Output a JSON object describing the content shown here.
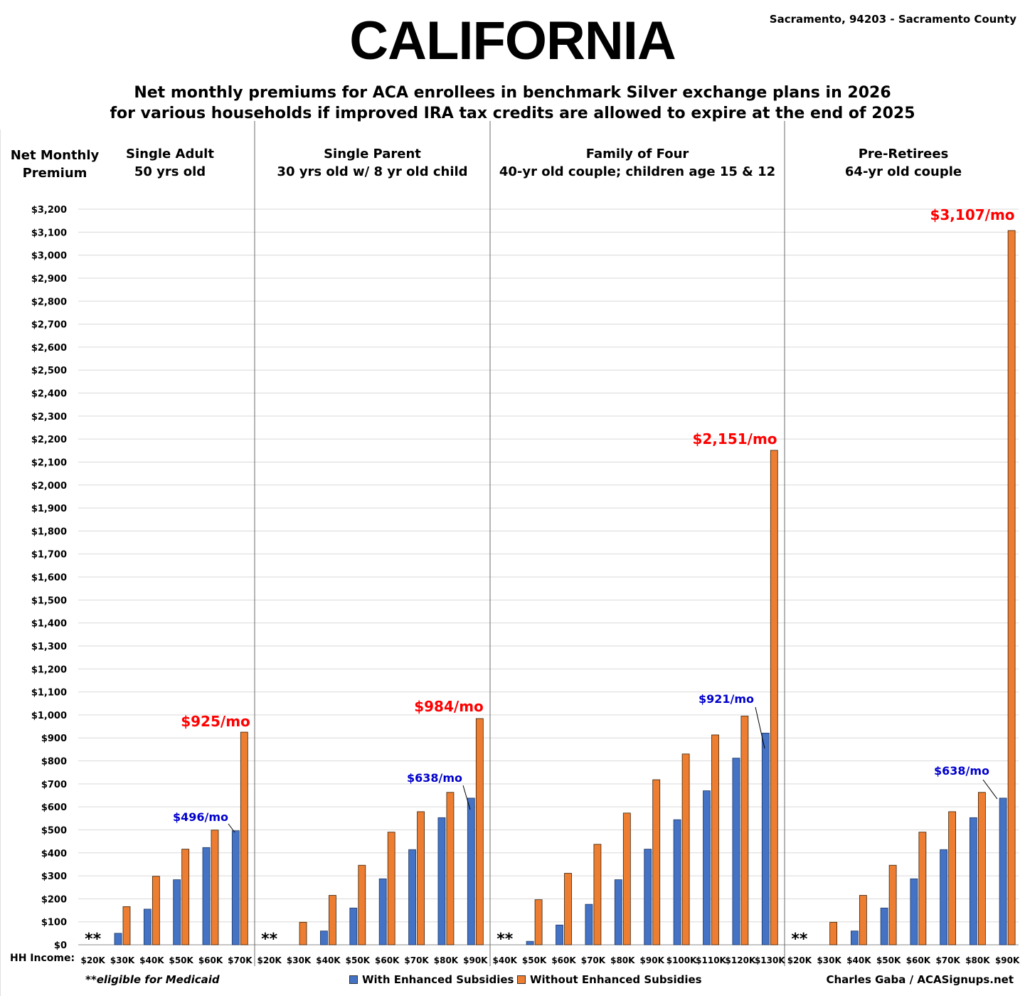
{
  "header": {
    "title": "CALIFORNIA",
    "location": "Sacramento, 94203 - Sacramento County",
    "subtitle_line1": "Net monthly premiums for ACA enrollees in benchmark Silver exchange plans in 2026",
    "subtitle_line2": "for various households if improved IRA tax credits are allowed to expire at the end of 2025"
  },
  "colors": {
    "with": "#4472C4",
    "without": "#ED7D31",
    "callout_red": "#FF0000",
    "callout_blue": "#0000CC",
    "grid": "#D9D9D9"
  },
  "footer": {
    "hh_income_label": "HH Income:",
    "footnote": "**eligible for Medicaid",
    "credit": "Charles Gaba / ACASignups.net",
    "legend_with": "With Enhanced Subsidies",
    "legend_without": "Without Enhanced Subsidies"
  },
  "chart_data": {
    "type": "bar",
    "ylabel_line1": "Net Monthly",
    "ylabel_line2": "Premium",
    "ylim": [
      0,
      3200
    ],
    "ytick_step": 100,
    "ytick_format": "$#,###",
    "grid": true,
    "legend_position": "bottom",
    "series_names": [
      "With Enhanced Subsidies",
      "Without Enhanced Subsidies"
    ],
    "panels": [
      {
        "title_line1": "Single Adult",
        "title_line2": "50 yrs old",
        "categories": [
          "$20K",
          "$30K",
          "$40K",
          "$50K",
          "$60K",
          "$70K"
        ],
        "with": [
          null,
          50,
          155,
          283,
          423,
          496
        ],
        "without": [
          null,
          166,
          298,
          416,
          499,
          925
        ],
        "medicaid_marker": "**",
        "callout_without": "$925/mo",
        "callout_with": "$496/mo"
      },
      {
        "title_line1": "Single Parent",
        "title_line2": "30 yrs old w/ 8 yr old child",
        "categories": [
          "$20K",
          "$30K",
          "$40K",
          "$50K",
          "$60K",
          "$70K",
          "$80K",
          "$90K"
        ],
        "with": [
          null,
          0,
          60,
          160,
          287,
          414,
          553,
          638
        ],
        "without": [
          null,
          98,
          215,
          346,
          490,
          579,
          663,
          984
        ],
        "medicaid_marker": "**",
        "callout_without": "$984/mo",
        "callout_with": "$638/mo"
      },
      {
        "title_line1": "Family of Four",
        "title_line2": "40-yr old couple; children age 15 & 12",
        "categories": [
          "$40K",
          "$50K",
          "$60K",
          "$70K",
          "$80K",
          "$90K",
          "$100K",
          "$110K",
          "$120K",
          "$130K"
        ],
        "with": [
          null,
          15,
          86,
          176,
          283,
          416,
          544,
          670,
          812,
          921
        ],
        "without": [
          null,
          196,
          311,
          437,
          573,
          718,
          830,
          913,
          995,
          2151
        ],
        "medicaid_marker": "**",
        "callout_without": "$2,151/mo",
        "callout_with": "$921/mo"
      },
      {
        "title_line1": "Pre-Retirees",
        "title_line2": "64-yr old couple",
        "categories": [
          "$20K",
          "$30K",
          "$40K",
          "$50K",
          "$60K",
          "$70K",
          "$80K",
          "$90K"
        ],
        "with": [
          null,
          0,
          60,
          160,
          287,
          414,
          553,
          638
        ],
        "without": [
          null,
          98,
          215,
          346,
          490,
          579,
          663,
          3107
        ],
        "medicaid_marker": "**",
        "callout_without": "$3,107/mo",
        "callout_with": "$638/mo"
      }
    ]
  }
}
